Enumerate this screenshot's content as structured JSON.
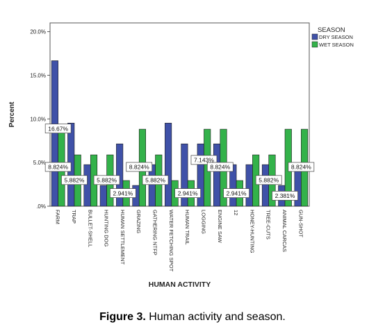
{
  "chart_data": {
    "type": "bar",
    "xlabel": "HUMAN ACTIVITY",
    "ylabel": "Percent",
    "ylim": [
      0,
      21
    ],
    "yticks": [
      0,
      5,
      10,
      15,
      20
    ],
    "ytick_labels": [
      ".0%",
      "5.0%",
      "10.0%",
      "15.0%",
      "20.0%"
    ],
    "grid": false,
    "legend_title": "SEASON",
    "legend_position": "top-right",
    "categories": [
      "FARM",
      "TRAP",
      "BULLET-SHELL",
      "HUNTING DOG",
      "HUMAN SETTLEMENT",
      "GRAZING",
      "GATHERING NTFP",
      "WATER FETCHING SPOT",
      "HUMAN TRAIL",
      "LOGGING",
      "ENGINE SAW",
      "12",
      "HONEY-HUNTING",
      "TREE-CUTS",
      "ANIMAL CARCAS",
      "GUN-SHOT"
    ],
    "series": [
      {
        "name": "DRY SEASON",
        "color": "#3f51a8",
        "values": [
          16.67,
          9.524,
          4.762,
          2.381,
          7.143,
          2.381,
          4.762,
          9.524,
          7.143,
          7.143,
          7.143,
          4.762,
          4.762,
          4.762,
          2.381,
          4.762
        ]
      },
      {
        "name": "WET SEASON",
        "color": "#33b24a",
        "values": [
          8.824,
          5.882,
          5.882,
          5.882,
          2.941,
          8.824,
          5.882,
          2.941,
          2.941,
          8.824,
          8.824,
          2.941,
          5.882,
          5.882,
          8.824,
          8.824
        ]
      }
    ],
    "annotations": [
      {
        "text": "16.67%",
        "category": "FARM",
        "y": 8.9
      },
      {
        "text": "8.824%",
        "category": "FARM",
        "y": 4.5
      },
      {
        "text": "5.882%",
        "category": "TRAP",
        "y": 3.0
      },
      {
        "text": "5.882%",
        "category": "HUNTING DOG",
        "y": 3.0
      },
      {
        "text": "2.941%",
        "category": "HUMAN SETTLEMENT",
        "y": 1.5
      },
      {
        "text": "8.824%",
        "category": "GRAZING",
        "y": 4.5
      },
      {
        "text": "5.882%",
        "category": "GATHERING NTFP",
        "y": 3.0
      },
      {
        "text": "2.941%",
        "category": "HUMAN TRAIL",
        "y": 1.5
      },
      {
        "text": "7.143%",
        "category": "LOGGING",
        "y": 5.3
      },
      {
        "text": "8.824%",
        "category": "ENGINE SAW",
        "y": 4.5
      },
      {
        "text": "2.941%",
        "category": "12",
        "y": 1.5
      },
      {
        "text": "5.882%",
        "category": "TREE-CUTS",
        "y": 3.0
      },
      {
        "text": "2.381%",
        "category": "ANIMAL CARCAS",
        "y": 1.2
      },
      {
        "text": "8.824%",
        "category": "GUN-SHOT",
        "y": 4.5
      }
    ]
  },
  "caption": {
    "label": "Figure 3.",
    "text": " Human activity and season."
  }
}
